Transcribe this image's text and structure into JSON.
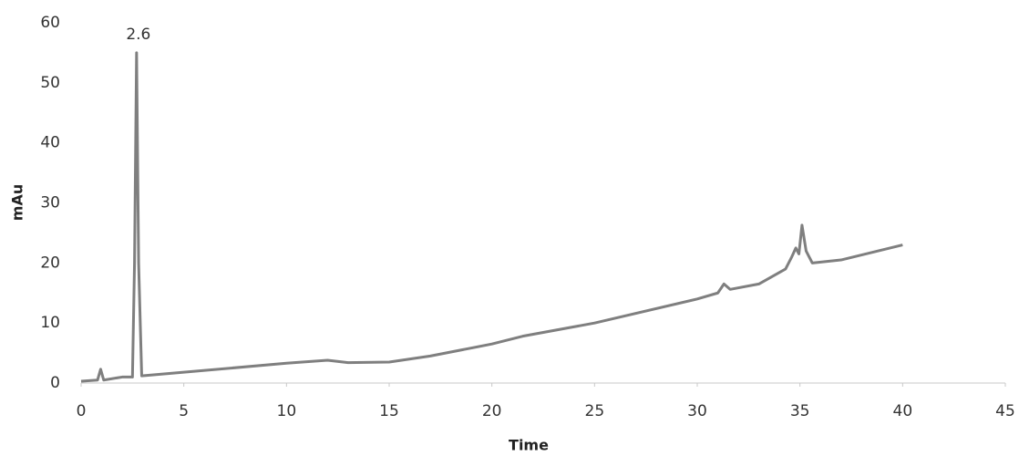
{
  "chart_data": {
    "type": "line",
    "x_label": "Time",
    "y_label": "mAu",
    "x": [
      0,
      0.8,
      0.95,
      1.1,
      2.0,
      2.5,
      2.6,
      2.7,
      2.8,
      2.95,
      5,
      10,
      12,
      13,
      15,
      17,
      20,
      21.5,
      25,
      30,
      31,
      31.3,
      31.6,
      33,
      34.3,
      34.6,
      34.8,
      34.95,
      35.1,
      35.3,
      35.6,
      37,
      40
    ],
    "series": [
      {
        "name": "mAu",
        "color": "#7f7f7f",
        "values": [
          0.3,
          0.5,
          2.3,
          0.5,
          1.0,
          1.0,
          20,
          55,
          20,
          1.2,
          1.8,
          3.3,
          3.8,
          3.4,
          3.5,
          4.5,
          6.5,
          7.8,
          10,
          14,
          15,
          16.5,
          15.6,
          16.5,
          19,
          21,
          22.5,
          21.5,
          26.3,
          22,
          20,
          20.5,
          23
        ]
      }
    ],
    "annotations": [
      {
        "text": "2.6",
        "x": 2.7,
        "y": 55
      }
    ],
    "xlim": [
      0,
      45
    ],
    "xticks": [
      0,
      5,
      10,
      15,
      20,
      25,
      30,
      35,
      40,
      45
    ],
    "ylim": [
      0,
      60
    ],
    "yticks": [
      0,
      10,
      20,
      30,
      40,
      50,
      60
    ],
    "grid": false
  }
}
